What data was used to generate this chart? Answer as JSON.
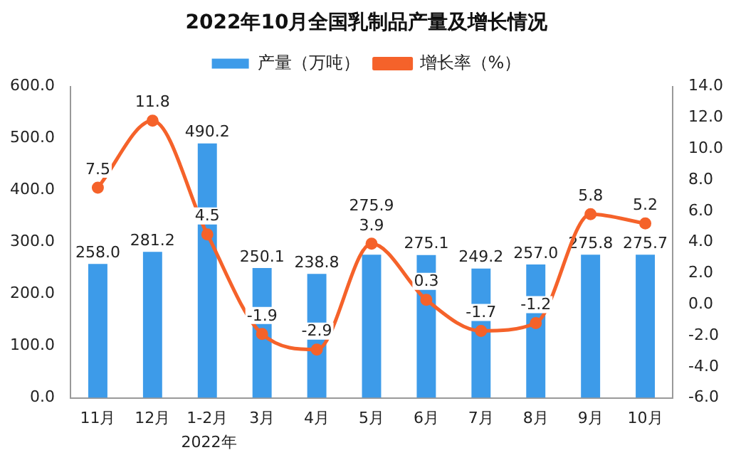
{
  "chart_data": {
    "type": "bar",
    "title": "2022年10月全国乳制品产量及增长情况",
    "categories": [
      "11月",
      "12月",
      "1-2月",
      "3月",
      "4月",
      "5月",
      "6月",
      "7月",
      "8月",
      "9月",
      "10月"
    ],
    "series": [
      {
        "name": "产量（万吨）",
        "color": "#3d9be9",
        "values": [
          258.0,
          281.2,
          490.2,
          250.1,
          238.8,
          275.9,
          275.1,
          249.2,
          257.0,
          275.8,
          275.7
        ],
        "value_labels": [
          "258.0",
          "281.2",
          "490.2",
          "250.1",
          "238.8",
          "275.9",
          "275.1",
          "249.2",
          "257.0",
          "275.8",
          "275.7"
        ]
      },
      {
        "name": "增长率（%）",
        "type": "line",
        "axis": "y2",
        "color": "#f5622a",
        "values": [
          7.5,
          11.8,
          4.5,
          -1.9,
          -2.9,
          3.9,
          0.3,
          -1.7,
          -1.2,
          5.8,
          5.2
        ],
        "value_labels": [
          "7.5",
          "11.8",
          "4.5",
          "-1.9",
          "-2.9",
          "3.9",
          "0.3",
          "-1.7",
          "-1.2",
          "5.8",
          "5.2"
        ]
      }
    ],
    "ylim": [
      0,
      600
    ],
    "yticks": [
      {
        "value": 0,
        "label": "0.0"
      },
      {
        "value": 100,
        "label": "100.0"
      },
      {
        "value": 200,
        "label": "200.0"
      },
      {
        "value": 300,
        "label": "300.0"
      },
      {
        "value": 400,
        "label": "400.0"
      },
      {
        "value": 500,
        "label": "500.0"
      },
      {
        "value": 600,
        "label": "600.0"
      }
    ],
    "y2lim": [
      -6,
      14
    ],
    "y2ticks": [
      {
        "value": -6,
        "label": "-6.0"
      },
      {
        "value": -4,
        "label": "-4.0"
      },
      {
        "value": -2,
        "label": "-2.0"
      },
      {
        "value": 0,
        "label": "0.0"
      },
      {
        "value": 2,
        "label": "2.0"
      },
      {
        "value": 4,
        "label": "4.0"
      },
      {
        "value": 6,
        "label": "6.0"
      },
      {
        "value": 8,
        "label": "8.0"
      },
      {
        "value": 10,
        "label": "10.0"
      },
      {
        "value": 12,
        "label": "12.0"
      },
      {
        "value": 14,
        "label": "14.0"
      }
    ],
    "annotations": [
      "2022年"
    ],
    "grid": false,
    "legend": "top",
    "marker": "circle",
    "line_style": "solid"
  }
}
